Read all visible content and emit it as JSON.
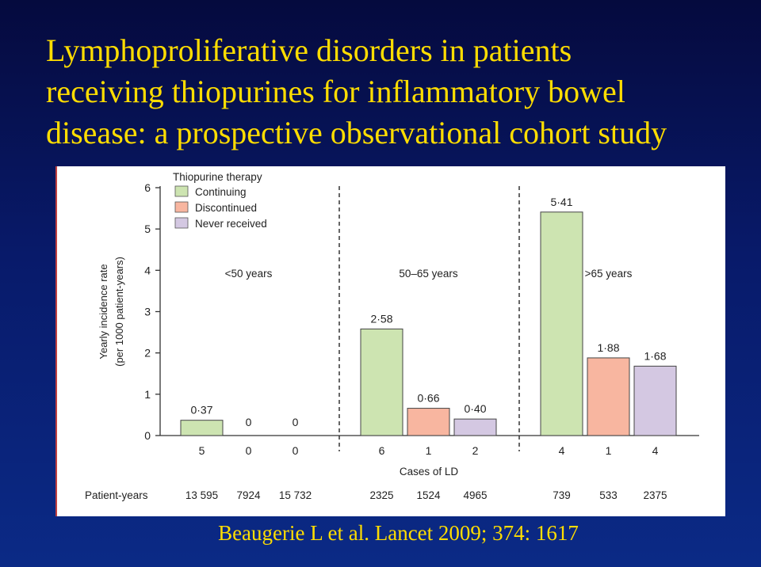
{
  "slide": {
    "title_lines": [
      "Lymphoproliferative disorders in patients",
      "receiving thiopurines for inflammatory bowel",
      "disease: a prospective observational cohort study"
    ],
    "citation": "Beaugerie L et al. Lancet 2009; 374: 1617"
  },
  "chart_data": {
    "type": "bar",
    "title": "",
    "ylabel_lines": [
      "Yearly incidence rate",
      "(per 1000 patient-years)"
    ],
    "xlabel": "Cases of LD",
    "ylim": [
      0,
      6
    ],
    "yticks": [
      "0",
      "1",
      "2",
      "3",
      "4",
      "5",
      "6"
    ],
    "legend": {
      "title": "Thiopurine therapy",
      "position": "top-left",
      "entries": [
        {
          "label": "Continuing",
          "color": "#cde4b1"
        },
        {
          "label": "Discontinued",
          "color": "#f8b6a0"
        },
        {
          "label": "Never received",
          "color": "#d4c8e2"
        }
      ]
    },
    "series_colors": [
      "#cde4b1",
      "#f8b6a0",
      "#d4c8e2"
    ],
    "patient_years_label": "Patient-years",
    "groups": [
      {
        "label": "<50 years",
        "values": [
          0.37,
          0,
          0
        ],
        "value_labels": [
          "0·37",
          "0",
          "0"
        ],
        "cases": [
          "5",
          "0",
          "0"
        ],
        "patient_years": [
          "13 595",
          "7924",
          "15 732"
        ]
      },
      {
        "label": "50–65 years",
        "values": [
          2.58,
          0.66,
          0.4
        ],
        "value_labels": [
          "2·58",
          "0·66",
          "0·40"
        ],
        "cases": [
          "6",
          "1",
          "2"
        ],
        "patient_years": [
          "2325",
          "1524",
          "4965"
        ]
      },
      {
        "label": ">65 years",
        "values": [
          5.41,
          1.88,
          1.68
        ],
        "value_labels": [
          "5·41",
          "1·88",
          "1·68"
        ],
        "cases": [
          "4",
          "1",
          "4"
        ],
        "patient_years": [
          "739",
          "533",
          "2375"
        ]
      }
    ]
  }
}
